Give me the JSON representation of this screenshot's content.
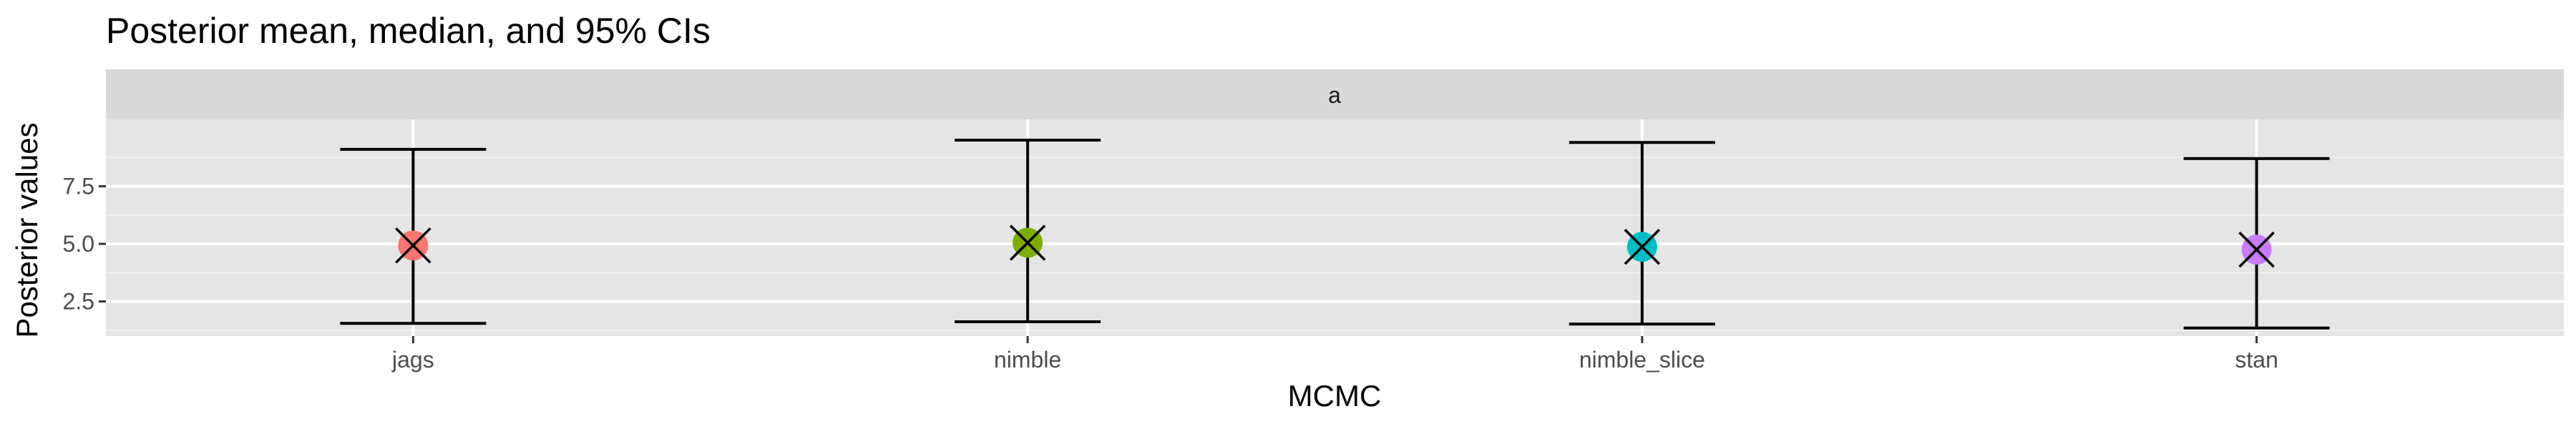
{
  "chart_data": {
    "type": "scatter",
    "title": "Posterior mean, median, and 95% CIs",
    "xlabel": "MCMC",
    "ylabel": "Posterior values",
    "facet_label": "a",
    "categories": [
      "jags",
      "nimble",
      "nimble_slice",
      "stan"
    ],
    "ylim": [
      1.0,
      10.4
    ],
    "yticks": [
      2.5,
      5.0,
      7.5
    ],
    "ytick_labels": [
      "2.5",
      "5.0",
      "7.5"
    ],
    "series": [
      {
        "name": "mean",
        "marker": "filled-circle",
        "values": [
          4.93,
          5.05,
          4.87,
          4.75
        ]
      },
      {
        "name": "median",
        "marker": "cross",
        "values": [
          4.93,
          5.05,
          4.87,
          4.75
        ]
      },
      {
        "name": "95% CI lower",
        "values": [
          1.55,
          1.62,
          1.52,
          1.35
        ]
      },
      {
        "name": "95% CI upper",
        "values": [
          9.1,
          9.5,
          9.4,
          8.7
        ]
      }
    ],
    "colors": [
      "#f8766d",
      "#7cae00",
      "#00bfc4",
      "#c77cff"
    ],
    "panel_background": "#e5e5e5",
    "strip_background": "#d9d9d9",
    "grid": true,
    "legend": "none"
  }
}
